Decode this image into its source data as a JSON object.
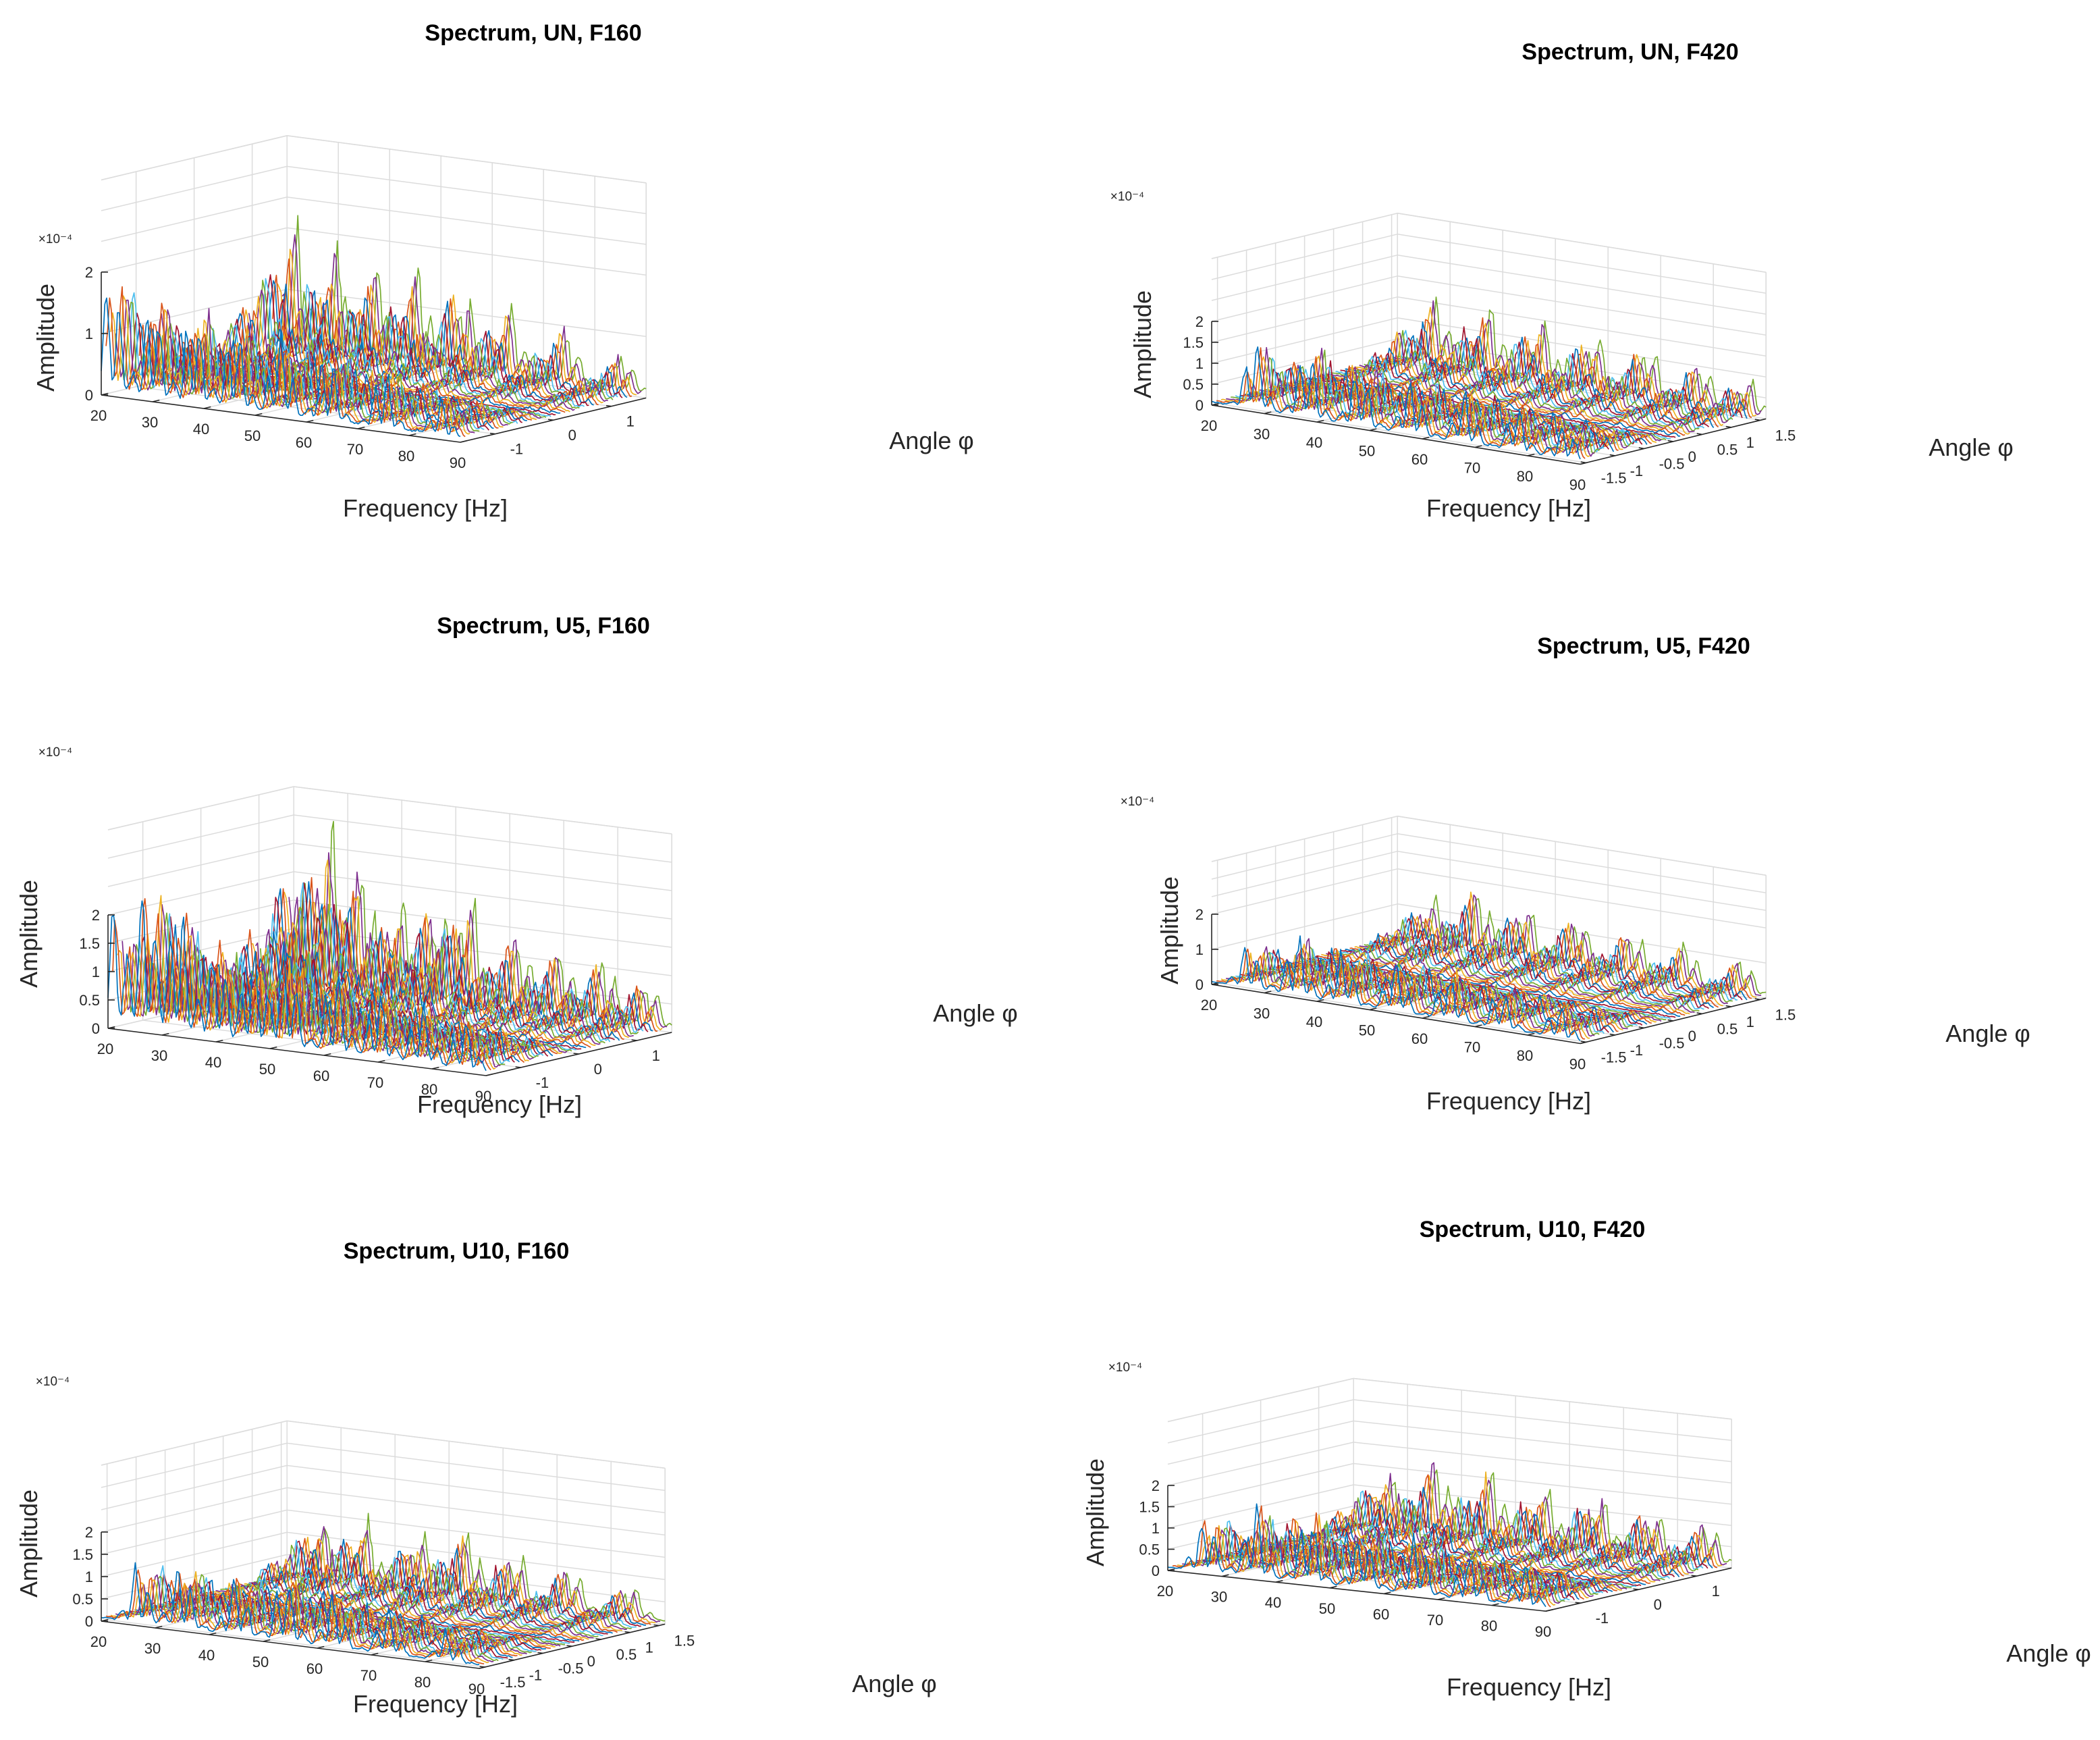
{
  "figure": {
    "series_colors": [
      "#0072bd",
      "#d95319",
      "#edb120",
      "#7e2f8e",
      "#77ac30",
      "#4dbeee",
      "#a2142f"
    ]
  },
  "chart_data": [
    {
      "type": "line",
      "title": "Spectrum, UN, F160",
      "xlabel": "Frequency [Hz]",
      "ylabel": "Angle φ",
      "zlabel": "Amplitude",
      "z_multiplier": "×10⁻⁴",
      "xlim": [
        20,
        90
      ],
      "ylim": [
        -1.6,
        1.6
      ],
      "zlim": [
        0,
        2
      ],
      "x_ticks": [
        "20",
        "30",
        "40",
        "50",
        "60",
        "70",
        "80",
        "90"
      ],
      "y_ticks": [
        "-1",
        "0",
        "1"
      ],
      "z_ticks": [
        "0",
        "1",
        "2"
      ],
      "series_count": 40,
      "peaks": [
        {
          "frequency": 22,
          "amplitude": 1.9
        },
        {
          "frequency": 30,
          "amplitude": 1.6
        },
        {
          "frequency": 38,
          "amplitude": 1.5
        },
        {
          "frequency": 46,
          "amplitude": 1.4
        },
        {
          "frequency": 55,
          "amplitude": 1.3
        },
        {
          "frequency": 64,
          "amplitude": 1.1
        },
        {
          "frequency": 75,
          "amplitude": 0.9
        },
        {
          "frequency": 86,
          "amplitude": 0.6
        }
      ]
    },
    {
      "type": "line",
      "title": "Spectrum, UN, F420",
      "xlabel": "Frequency [Hz]",
      "ylabel": "Angle φ",
      "zlabel": "Amplitude",
      "z_multiplier": "×10⁻⁴",
      "xlim": [
        20,
        90
      ],
      "ylim": [
        -1.6,
        1.6
      ],
      "zlim": [
        0,
        2
      ],
      "x_ticks": [
        "20",
        "30",
        "40",
        "50",
        "60",
        "70",
        "80",
        "90"
      ],
      "y_ticks": [
        "-1.5",
        "-1",
        "-0.5",
        "0",
        "0.5",
        "1",
        "1.5"
      ],
      "z_ticks": [
        "0",
        "0.5",
        "1",
        "1.5",
        "2"
      ],
      "series_count": 40,
      "peaks": [
        {
          "frequency": 28,
          "amplitude": 1.5
        },
        {
          "frequency": 38,
          "amplitude": 1.6
        },
        {
          "frequency": 48,
          "amplitude": 1.4
        },
        {
          "frequency": 58,
          "amplitude": 1.3
        },
        {
          "frequency": 68,
          "amplitude": 1.2
        },
        {
          "frequency": 78,
          "amplitude": 1.0
        },
        {
          "frequency": 87,
          "amplitude": 0.8
        }
      ]
    },
    {
      "type": "line",
      "title": "Spectrum, U5, F160",
      "xlabel": "Frequency [Hz]",
      "ylabel": "Angle φ",
      "zlabel": "Amplitude",
      "z_multiplier": "×10⁻⁴",
      "xlim": [
        20,
        90
      ],
      "ylim": [
        -1.6,
        1.6
      ],
      "zlim": [
        0,
        2
      ],
      "x_ticks": [
        "20",
        "30",
        "40",
        "50",
        "60",
        "70",
        "80",
        "90"
      ],
      "y_ticks": [
        "-1",
        "0",
        "1"
      ],
      "z_ticks": [
        "0",
        "0.5",
        "1",
        "1.5",
        "2"
      ],
      "series_count": 40,
      "peaks": [
        {
          "frequency": 21,
          "amplitude": 1.9
        },
        {
          "frequency": 27,
          "amplitude": 2.6
        },
        {
          "frequency": 33,
          "amplitude": 2.2
        },
        {
          "frequency": 40,
          "amplitude": 1.6
        },
        {
          "frequency": 47,
          "amplitude": 1.6
        },
        {
          "frequency": 53,
          "amplitude": 1.8
        },
        {
          "frequency": 62,
          "amplitude": 1.4
        },
        {
          "frequency": 70,
          "amplitude": 1.1
        },
        {
          "frequency": 78,
          "amplitude": 1.0
        },
        {
          "frequency": 86,
          "amplitude": 0.8
        }
      ]
    },
    {
      "type": "line",
      "title": "Spectrum, U5, F420",
      "xlabel": "Frequency [Hz]",
      "ylabel": "Angle φ",
      "zlabel": "Amplitude",
      "z_multiplier": "×10⁻⁴",
      "xlim": [
        20,
        90
      ],
      "ylim": [
        -1.6,
        1.6
      ],
      "zlim": [
        0,
        2
      ],
      "x_ticks": [
        "20",
        "30",
        "40",
        "50",
        "60",
        "70",
        "80",
        "90"
      ],
      "y_ticks": [
        "-1.5",
        "-1",
        "-0.5",
        "0",
        "0.5",
        "1",
        "1.5"
      ],
      "z_ticks": [
        "0",
        "1",
        "2"
      ],
      "series_count": 40,
      "peaks": [
        {
          "frequency": 27,
          "amplitude": 1.2
        },
        {
          "frequency": 36,
          "amplitude": 1.7
        },
        {
          "frequency": 45,
          "amplitude": 1.5
        },
        {
          "frequency": 55,
          "amplitude": 1.4
        },
        {
          "frequency": 65,
          "amplitude": 1.3
        },
        {
          "frequency": 75,
          "amplitude": 1.1
        },
        {
          "frequency": 86,
          "amplitude": 0.9
        }
      ]
    },
    {
      "type": "line",
      "title": "Spectrum, U10, F160",
      "xlabel": "Frequency [Hz]",
      "ylabel": "Angle φ",
      "zlabel": "Amplitude",
      "z_multiplier": "×10⁻⁴",
      "xlim": [
        20,
        90
      ],
      "ylim": [
        -1.6,
        1.6
      ],
      "zlim": [
        0,
        2
      ],
      "x_ticks": [
        "20",
        "30",
        "40",
        "50",
        "60",
        "70",
        "80",
        "90"
      ],
      "y_ticks": [
        "-1.5",
        "-1",
        "-0.5",
        "0",
        "0.5",
        "1",
        "1.5"
      ],
      "z_ticks": [
        "0",
        "0.5",
        "1",
        "1.5",
        "2"
      ],
      "series_count": 40,
      "peaks": [
        {
          "frequency": 27,
          "amplitude": 1.3
        },
        {
          "frequency": 35,
          "amplitude": 1.4
        },
        {
          "frequency": 45,
          "amplitude": 1.3
        },
        {
          "frequency": 54,
          "amplitude": 1.5
        },
        {
          "frequency": 63,
          "amplitude": 1.1
        },
        {
          "frequency": 73,
          "amplitude": 0.9
        },
        {
          "frequency": 84,
          "amplitude": 0.7
        }
      ]
    },
    {
      "type": "line",
      "title": "Spectrum, U10, F420",
      "xlabel": "Frequency [Hz]",
      "ylabel": "Angle φ",
      "zlabel": "Amplitude",
      "z_multiplier": "×10⁻⁴",
      "xlim": [
        20,
        90
      ],
      "ylim": [
        -1.6,
        1.6
      ],
      "zlim": [
        0,
        2
      ],
      "x_ticks": [
        "20",
        "30",
        "40",
        "50",
        "60",
        "70",
        "80",
        "90"
      ],
      "y_ticks": [
        "-1",
        "0",
        "1"
      ],
      "z_ticks": [
        "0",
        "0.5",
        "1",
        "1.5",
        "2"
      ],
      "series_count": 40,
      "peaks": [
        {
          "frequency": 27,
          "amplitude": 1.3
        },
        {
          "frequency": 36,
          "amplitude": 1.7
        },
        {
          "frequency": 46,
          "amplitude": 1.6
        },
        {
          "frequency": 56,
          "amplitude": 1.4
        },
        {
          "frequency": 66,
          "amplitude": 1.3
        },
        {
          "frequency": 76,
          "amplitude": 1.1
        },
        {
          "frequency": 86,
          "amplitude": 0.9
        }
      ]
    }
  ]
}
